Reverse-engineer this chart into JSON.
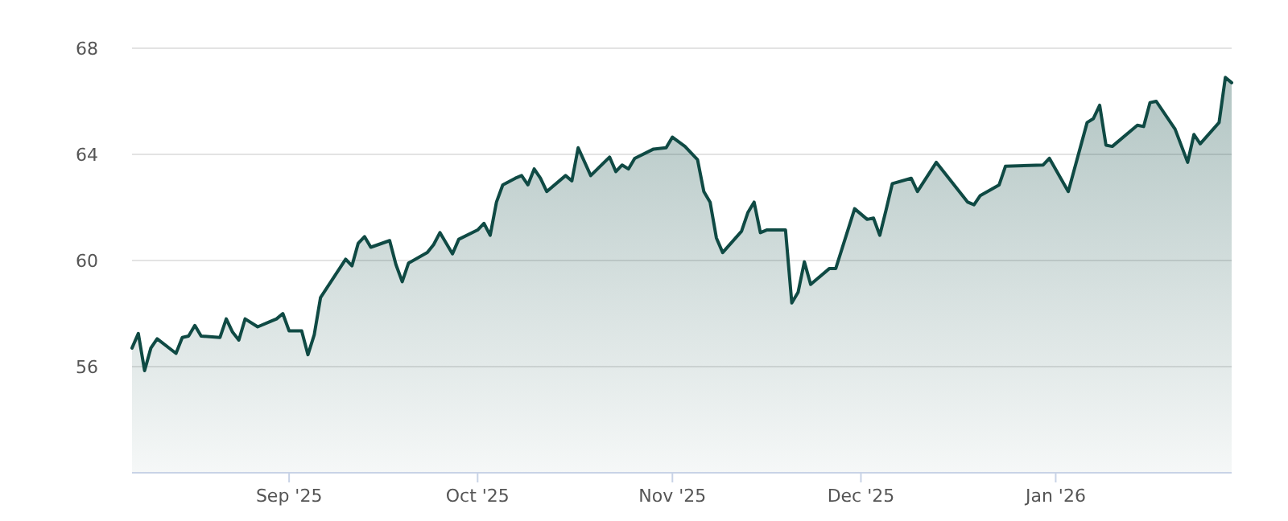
{
  "chart_data": {
    "type": "area",
    "x": [
      "2025-08-07",
      "2025-08-08",
      "2025-08-09",
      "2025-08-10",
      "2025-08-11",
      "2025-08-14",
      "2025-08-15",
      "2025-08-16",
      "2025-08-17",
      "2025-08-18",
      "2025-08-21",
      "2025-08-22",
      "2025-08-23",
      "2025-08-24",
      "2025-08-25",
      "2025-08-27",
      "2025-08-29",
      "2025-08-30",
      "2025-08-31",
      "2025-09-01",
      "2025-09-03",
      "2025-09-04",
      "2025-09-05",
      "2025-09-06",
      "2025-09-10",
      "2025-09-11",
      "2025-09-12",
      "2025-09-13",
      "2025-09-14",
      "2025-09-17",
      "2025-09-18",
      "2025-09-19",
      "2025-09-20",
      "2025-09-23",
      "2025-09-24",
      "2025-09-25",
      "2025-09-27",
      "2025-09-28",
      "2025-10-01",
      "2025-10-02",
      "2025-10-03",
      "2025-10-04",
      "2025-10-05",
      "2025-10-07",
      "2025-10-08",
      "2025-10-09",
      "2025-10-10",
      "2025-10-11",
      "2025-10-12",
      "2025-10-15",
      "2025-10-16",
      "2025-10-17",
      "2025-10-19",
      "2025-10-22",
      "2025-10-23",
      "2025-10-24",
      "2025-10-25",
      "2025-10-26",
      "2025-10-29",
      "2025-10-31",
      "2025-11-01",
      "2025-11-03",
      "2025-11-05",
      "2025-11-06",
      "2025-11-07",
      "2025-11-08",
      "2025-11-09",
      "2025-11-12",
      "2025-11-13",
      "2025-11-14",
      "2025-11-15",
      "2025-11-16",
      "2025-11-19",
      "2025-11-20",
      "2025-11-21",
      "2025-11-22",
      "2025-11-23",
      "2025-11-26",
      "2025-11-27",
      "2025-11-28",
      "2025-11-30",
      "2025-12-02",
      "2025-12-03",
      "2025-12-04",
      "2025-12-05",
      "2025-12-06",
      "2025-12-09",
      "2025-12-10",
      "2025-12-13",
      "2025-12-18",
      "2025-12-19",
      "2025-12-20",
      "2025-12-23",
      "2025-12-24",
      "2025-12-30",
      "2025-12-31",
      "2026-01-03",
      "2026-01-06",
      "2026-01-07",
      "2026-01-08",
      "2026-01-09",
      "2026-01-10",
      "2026-01-14",
      "2026-01-15",
      "2026-01-16",
      "2026-01-17",
      "2026-01-20",
      "2026-01-22",
      "2026-01-23",
      "2026-01-24",
      "2026-01-27",
      "2026-01-28",
      "2026-01-29"
    ],
    "series": [
      {
        "color": "#0f4a44",
        "values": [
          56.7,
          57.25,
          55.85,
          56.7,
          57.05,
          56.5,
          57.1,
          57.15,
          57.55,
          57.15,
          57.1,
          57.8,
          57.3,
          57.0,
          57.8,
          57.5,
          57.7,
          57.8,
          58.0,
          57.35,
          57.35,
          56.45,
          57.2,
          58.6,
          60.05,
          59.8,
          60.65,
          60.9,
          60.5,
          60.75,
          59.85,
          59.2,
          59.9,
          60.3,
          60.6,
          61.05,
          60.25,
          60.8,
          61.15,
          61.4,
          60.95,
          62.2,
          62.85,
          63.1,
          63.2,
          62.85,
          63.45,
          63.1,
          62.6,
          63.2,
          63.0,
          64.25,
          63.2,
          63.9,
          63.35,
          63.6,
          63.45,
          63.85,
          64.2,
          64.25,
          64.65,
          64.3,
          63.8,
          62.6,
          62.2,
          60.85,
          60.3,
          61.1,
          61.8,
          62.2,
          61.05,
          61.15,
          61.15,
          58.4,
          58.8,
          59.95,
          59.1,
          59.7,
          59.7,
          60.45,
          61.95,
          61.55,
          61.6,
          60.95,
          61.9,
          62.9,
          63.1,
          62.6,
          63.7,
          62.2,
          62.1,
          62.45,
          62.85,
          63.55,
          63.6,
          63.85,
          62.6,
          65.2,
          65.35,
          65.85,
          64.35,
          64.3,
          65.1,
          65.05,
          65.95,
          66.0,
          64.95,
          63.7,
          64.75,
          64.4,
          65.2,
          66.9,
          66.7
        ]
      }
    ],
    "xlim": [
      "2025-08-07",
      "2026-01-29"
    ],
    "xticks": [
      {
        "value": "2025-09-01",
        "label": "Sep '25"
      },
      {
        "value": "2025-10-01",
        "label": "Oct '25"
      },
      {
        "value": "2025-11-01",
        "label": "Nov '25"
      },
      {
        "value": "2025-12-01",
        "label": "Dec '25"
      },
      {
        "value": "2026-01-01",
        "label": "Jan '26"
      }
    ],
    "ylim": [
      52,
      68
    ],
    "yticks": [
      56,
      60,
      64,
      68
    ],
    "grid": "y"
  }
}
